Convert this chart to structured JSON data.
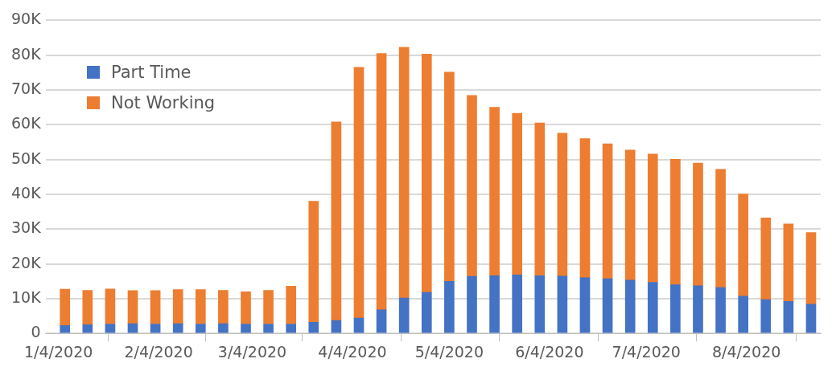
{
  "chart_data": {
    "type": "bar",
    "stacked": true,
    "x": [
      "2020-01-06",
      "2020-01-13",
      "2020-01-20",
      "2020-01-27",
      "2020-02-03",
      "2020-02-10",
      "2020-02-17",
      "2020-02-24",
      "2020-03-02",
      "2020-03-09",
      "2020-03-16",
      "2020-03-23",
      "2020-03-30",
      "2020-04-06",
      "2020-04-13",
      "2020-04-20",
      "2020-04-27",
      "2020-05-04",
      "2020-05-11",
      "2020-05-18",
      "2020-05-25",
      "2020-06-01",
      "2020-06-08",
      "2020-06-15",
      "2020-06-22",
      "2020-06-29",
      "2020-07-06",
      "2020-07-13",
      "2020-07-20",
      "2020-07-27",
      "2020-08-03",
      "2020-08-10",
      "2020-08-17",
      "2020-08-24"
    ],
    "series": [
      {
        "name": "Part Time",
        "color": "#4472c4",
        "values": [
          2300,
          2500,
          2700,
          2800,
          2700,
          2800,
          2700,
          2800,
          2700,
          2700,
          2700,
          3200,
          3700,
          4400,
          6800,
          10200,
          11800,
          15000,
          16400,
          16600,
          16800,
          16600,
          16500,
          16000,
          15700,
          15300,
          14700,
          14000,
          13700,
          13200,
          10700,
          9700,
          9200,
          8400
        ]
      },
      {
        "name": "Not Working",
        "color": "#ed7d31",
        "values": [
          10400,
          9900,
          10100,
          9500,
          9600,
          9800,
          9900,
          9600,
          9300,
          9700,
          10900,
          34800,
          57100,
          72100,
          73700,
          72100,
          68500,
          60100,
          52000,
          48400,
          46500,
          43900,
          41100,
          40000,
          38800,
          37400,
          36900,
          36100,
          35300,
          34000,
          29400,
          23500,
          22300,
          20600
        ]
      }
    ],
    "xlim": [
      "2019-12-31",
      "2020-08-27"
    ],
    "xticks": [
      {
        "value": "2020-01-04",
        "label": "1/4/2020"
      },
      {
        "value": "2020-02-04",
        "label": "2/4/2020"
      },
      {
        "value": "2020-03-04",
        "label": "3/4/2020"
      },
      {
        "value": "2020-04-04",
        "label": "4/4/2020"
      },
      {
        "value": "2020-05-04",
        "label": "5/4/2020"
      },
      {
        "value": "2020-06-04",
        "label": "6/4/2020"
      },
      {
        "value": "2020-07-04",
        "label": "7/4/2020"
      },
      {
        "value": "2020-08-04",
        "label": "8/4/2020"
      }
    ],
    "ylim": [
      0,
      90000
    ],
    "yticks": [
      0,
      {
        "value": 10000,
        "label": "10K"
      },
      {
        "value": 20000,
        "label": "20K"
      },
      {
        "value": 30000,
        "label": "30K"
      },
      {
        "value": 40000,
        "label": "40K"
      },
      {
        "value": 50000,
        "label": "50K"
      },
      {
        "value": 60000,
        "label": "60K"
      },
      {
        "value": 70000,
        "label": "70K"
      },
      {
        "value": 80000,
        "label": "80K"
      },
      {
        "value": 90000,
        "label": "90K"
      }
    ],
    "grid": "y",
    "legend": "top left"
  }
}
